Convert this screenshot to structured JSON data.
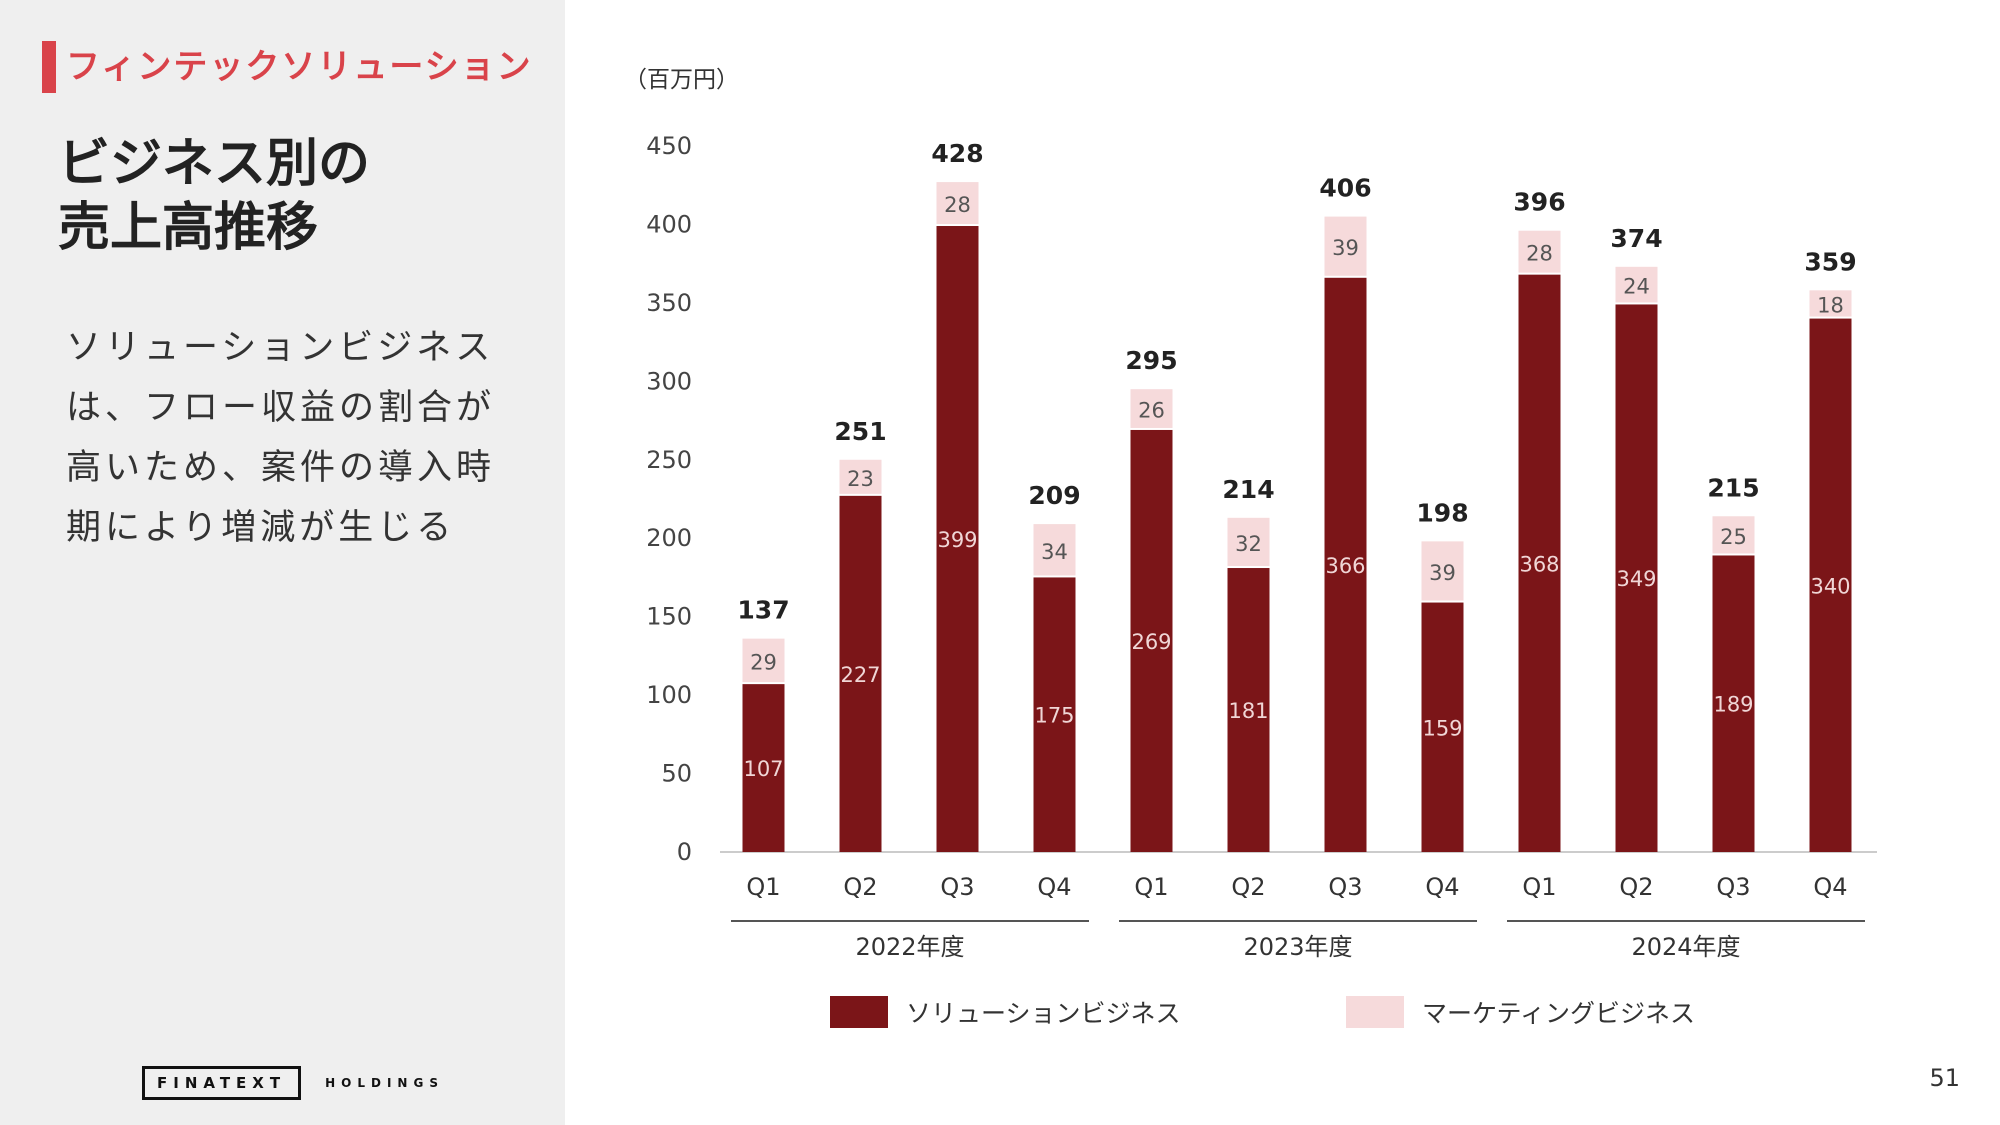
{
  "section_tag": "フィンテックソリューション",
  "side_title": [
    "ビジネス別の",
    "売上高推移"
  ],
  "side_body": [
    "ソリューションビジネス",
    "は、フロー収益の割合が",
    "高いため、案件の導入時",
    "期により増減が生じる"
  ],
  "logo": {
    "main": "FINATEXT",
    "sub": "HOLDINGS"
  },
  "page_number": "51",
  "colors": {
    "solution": "#7b1518",
    "marketing": "#f6dadb",
    "accent": "#d9434a"
  },
  "chart_data": {
    "type": "bar",
    "stacked": true,
    "unit_label": "（百万円）",
    "ylim": [
      0,
      450
    ],
    "yticks": [
      0,
      50,
      100,
      150,
      200,
      250,
      300,
      350,
      400,
      450
    ],
    "categories": [
      "Q1",
      "Q2",
      "Q3",
      "Q4",
      "Q1",
      "Q2",
      "Q3",
      "Q4",
      "Q1",
      "Q2",
      "Q3",
      "Q4"
    ],
    "groups": [
      {
        "label": "2022年度",
        "count": 4
      },
      {
        "label": "2023年度",
        "count": 4
      },
      {
        "label": "2024年度",
        "count": 4
      }
    ],
    "series": [
      {
        "name": "ソリューションビジネス",
        "color": "#7b1518",
        "label_color": "#f0d6d6",
        "values": [
          107,
          227,
          399,
          175,
          269,
          181,
          366,
          159,
          368,
          349,
          189,
          340
        ]
      },
      {
        "name": "マーケティングビジネス",
        "color": "#f6dadb",
        "label_color": "#555555",
        "values": [
          29,
          23,
          28,
          34,
          26,
          32,
          39,
          39,
          28,
          24,
          25,
          18
        ]
      }
    ],
    "totals": [
      137,
      251,
      428,
      209,
      295,
      214,
      406,
      198,
      396,
      374,
      215,
      359
    ],
    "grid": false,
    "legend_position": "bottom"
  }
}
